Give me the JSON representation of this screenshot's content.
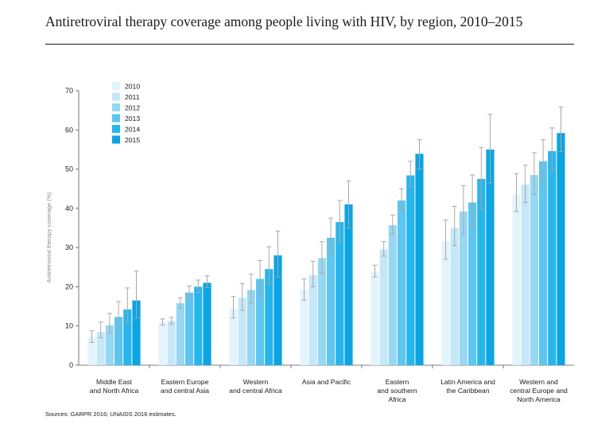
{
  "title": "Antiretroviral therapy coverage among people living with HIV, by region, 2010–2015",
  "source": "Sources: GARPR 2016; UNAIDS 2016 estimates.",
  "colors": [
    "#e3f4fc",
    "#c5e8f8",
    "#96d7f3",
    "#5dc5ef",
    "#26b6ec",
    "#0ca4e2"
  ],
  "error_color": "#a8a8a8",
  "chart_data": {
    "type": "bar",
    "ylabel": "Antiretroviral therapy coverage (%)",
    "ylim": [
      0,
      70
    ],
    "yticks": [
      0,
      10,
      20,
      30,
      40,
      50,
      60,
      70
    ],
    "legend_placement": "top-left",
    "categories": [
      [
        "Middle East",
        "and North Africa"
      ],
      [
        "Eastern Europe",
        "and central Asia"
      ],
      [
        "Western",
        "and central Africa"
      ],
      [
        "Asia and Pacific"
      ],
      [
        "Eastern",
        "and southern",
        "Africa"
      ],
      [
        "Latin America and",
        "the Caribbean"
      ],
      [
        "Western and",
        "central Europe and",
        "North America"
      ]
    ],
    "series": [
      {
        "name": "2010",
        "values": [
          7.2,
          11.0,
          14.5,
          19.2,
          23.8,
          31.5,
          43.5
        ],
        "lower": [
          5.8,
          10.2,
          12.0,
          16.5,
          22.5,
          27.0,
          39.2
        ],
        "upper": [
          8.8,
          11.8,
          17.5,
          22.0,
          25.5,
          37.0,
          48.8
        ]
      },
      {
        "name": "2011",
        "values": [
          8.5,
          11.3,
          17.2,
          23.0,
          29.5,
          35.0,
          46.0
        ],
        "lower": [
          7.0,
          10.5,
          14.0,
          20.0,
          27.8,
          30.5,
          41.5
        ],
        "upper": [
          11.0,
          12.2,
          20.8,
          26.5,
          31.5,
          40.5,
          51.0
        ]
      },
      {
        "name": "2012",
        "values": [
          10.2,
          15.8,
          19.2,
          27.3,
          35.7,
          39.2,
          48.5
        ],
        "lower": [
          8.2,
          14.5,
          15.8,
          23.5,
          33.5,
          33.5,
          43.5
        ],
        "upper": [
          13.2,
          17.2,
          23.2,
          31.5,
          38.3,
          45.8,
          54.2
        ]
      },
      {
        "name": "2013",
        "values": [
          12.3,
          18.5,
          22.0,
          32.5,
          42.0,
          41.5,
          52.0
        ],
        "lower": [
          9.5,
          17.0,
          18.0,
          28.5,
          39.5,
          35.5,
          46.5
        ],
        "upper": [
          16.2,
          20.2,
          26.7,
          37.5,
          45.0,
          48.5,
          57.5
        ]
      },
      {
        "name": "2014",
        "values": [
          14.2,
          20.0,
          24.5,
          36.5,
          48.4,
          47.5,
          54.6
        ],
        "lower": [
          11.0,
          18.5,
          20.8,
          31.5,
          45.5,
          40.0,
          49.5
        ],
        "upper": [
          19.7,
          21.7,
          30.2,
          42.0,
          52.0,
          55.5,
          60.5
        ]
      },
      {
        "name": "2015",
        "values": [
          16.5,
          21.0,
          28.0,
          41.0,
          53.9,
          55.0,
          59.2
        ],
        "lower": [
          12.0,
          19.8,
          22.5,
          35.0,
          50.0,
          46.5,
          54.5
        ],
        "upper": [
          24.0,
          22.8,
          34.2,
          47.0,
          57.5,
          64.0,
          65.8
        ]
      }
    ]
  }
}
